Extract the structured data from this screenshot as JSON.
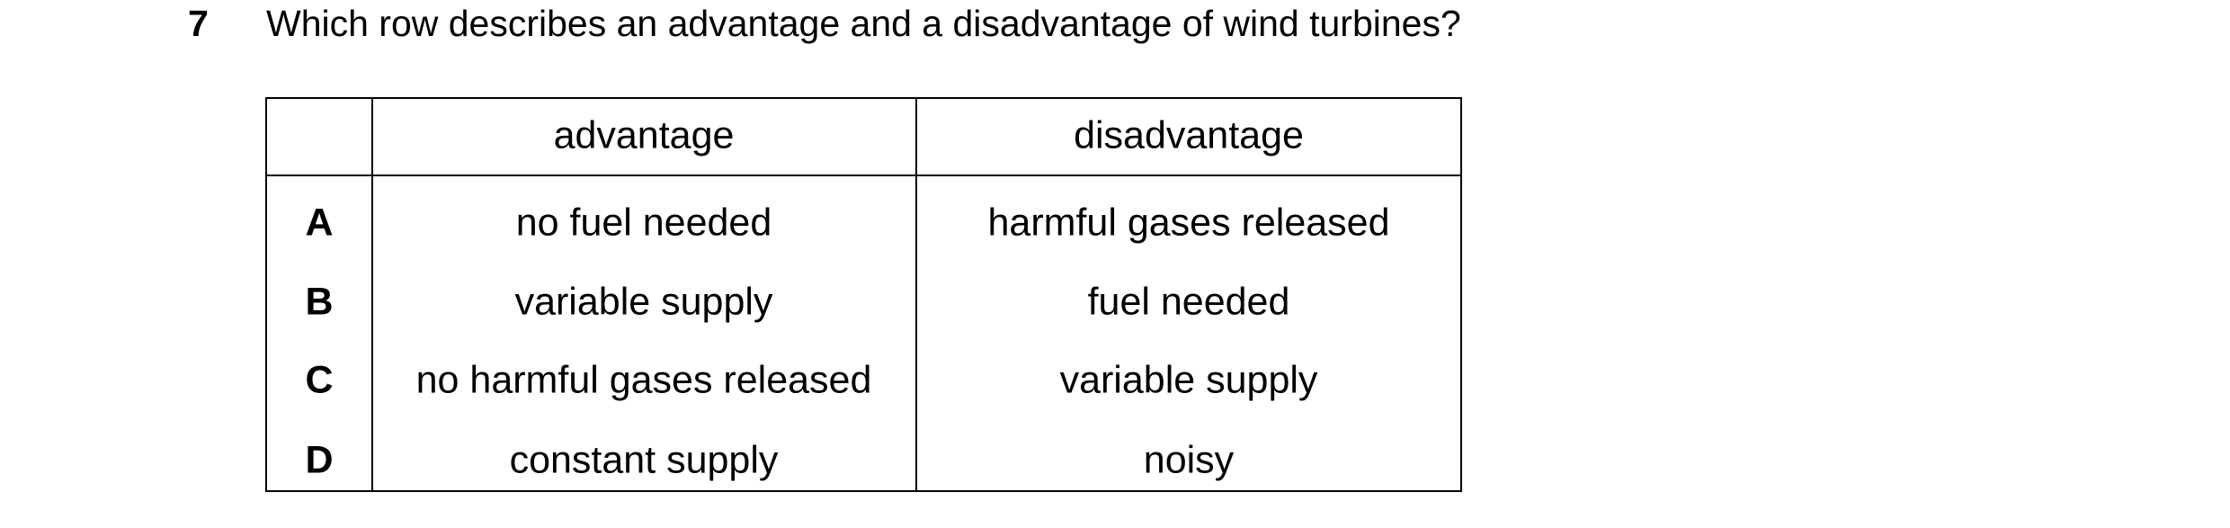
{
  "question": {
    "number": "7",
    "text": "Which row describes an advantage and a disadvantage of wind turbines?"
  },
  "table": {
    "columns": [
      "advantage",
      "disadvantage"
    ],
    "rows": [
      {
        "label": "A",
        "cells": [
          "no fuel needed",
          "harmful gases released"
        ]
      },
      {
        "label": "B",
        "cells": [
          "variable supply",
          "fuel needed"
        ]
      },
      {
        "label": "C",
        "cells": [
          "no harmful gases released",
          "variable supply"
        ]
      },
      {
        "label": "D",
        "cells": [
          "constant supply",
          "noisy"
        ]
      }
    ]
  }
}
